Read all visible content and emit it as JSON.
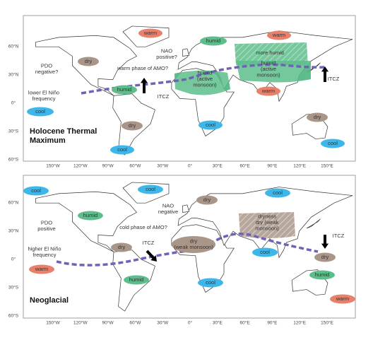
{
  "axes": {
    "lat_labels": [
      "60°N",
      "30°N",
      "0°",
      "30°S",
      "60°S"
    ],
    "lon_labels": [
      "150°W",
      "120°W",
      "90°W",
      "60°W",
      "30°W",
      "0°",
      "30°E",
      "60°E",
      "90°E",
      "120°E",
      "150°E"
    ]
  },
  "panels": [
    {
      "title_lines": [
        "Holocene Thermal",
        "Maximum"
      ],
      "labels": [
        {
          "lines": [
            "warm"
          ],
          "color": "#e8806b"
        },
        {
          "lines": [
            "warm"
          ],
          "color": "#e8806b"
        },
        {
          "lines": [
            "humid"
          ],
          "color": "#5dbd8b"
        },
        {
          "lines": [
            "dry"
          ],
          "color": "#a99689"
        },
        {
          "lines": [
            "cool"
          ],
          "color": "#3db7ea"
        },
        {
          "lines": [
            "humid"
          ],
          "color": "#5dbd8b"
        },
        {
          "lines": [
            "warm"
          ],
          "color": "#e8806b"
        },
        {
          "lines": [
            "cool"
          ],
          "color": "#3db7ea"
        },
        {
          "lines": [
            "dry"
          ],
          "color": "#a99689"
        },
        {
          "lines": [
            "dry"
          ],
          "color": "#a99689"
        },
        {
          "lines": [
            "cool"
          ],
          "color": "#3db7ea"
        },
        {
          "lines": [
            "cool"
          ],
          "color": "#3db7ea"
        },
        {
          "lines": [
            "more humid"
          ]
        },
        {
          "lines": [
            "humid",
            "(active",
            "monsoon)"
          ]
        },
        {
          "lines": [
            "humid",
            "(active",
            "monsoon)"
          ]
        },
        {
          "lines": [
            "NAO",
            "positive?"
          ]
        },
        {
          "lines": [
            "PDO",
            "negative?"
          ]
        },
        {
          "lines": [
            "warm phase of AMO?"
          ]
        },
        {
          "lines": [
            "ITCZ"
          ]
        },
        {
          "lines": [
            "ITCZ"
          ]
        },
        {
          "lines": [
            "lower El Niño",
            "frequency"
          ]
        }
      ]
    },
    {
      "title_lines": [
        "Neoglacial"
      ],
      "labels": [
        {
          "lines": [
            "cool"
          ],
          "color": "#3db7ea"
        },
        {
          "lines": [
            "cool"
          ],
          "color": "#3db7ea"
        },
        {
          "lines": [
            "cool"
          ],
          "color": "#3db7ea"
        },
        {
          "lines": [
            "dry"
          ],
          "color": "#a99689"
        },
        {
          "lines": [
            "humid"
          ],
          "color": "#5dbd8b"
        },
        {
          "lines": [
            "dry"
          ],
          "color": "#a99689"
        },
        {
          "lines": [
            "cool"
          ],
          "color": "#3db7ea"
        },
        {
          "lines": [
            "dry"
          ],
          "color": "#a99689"
        },
        {
          "lines": [
            "warm"
          ],
          "color": "#e8806b"
        },
        {
          "lines": [
            "humid"
          ],
          "color": "#5dbd8b"
        },
        {
          "lines": [
            "humid"
          ],
          "color": "#5dbd8b"
        },
        {
          "lines": [
            "cool"
          ],
          "color": "#3db7ea"
        },
        {
          "lines": [
            "warm"
          ],
          "color": "#e8806b"
        },
        {
          "lines": [
            "dry",
            "(weak monsoon)"
          ],
          "color": "#a99689"
        },
        {
          "lines": [
            "dryness",
            "dry (weak",
            "monsoon)"
          ]
        },
        {
          "lines": [
            "NAO",
            "negative"
          ]
        },
        {
          "lines": [
            "PDO",
            "positive"
          ]
        },
        {
          "lines": [
            "cold phase of AMO?"
          ]
        },
        {
          "lines": [
            "ITCZ"
          ]
        },
        {
          "lines": [
            "ITCZ"
          ]
        },
        {
          "lines": [
            "higher El Niño",
            "frequency"
          ]
        }
      ]
    }
  ]
}
